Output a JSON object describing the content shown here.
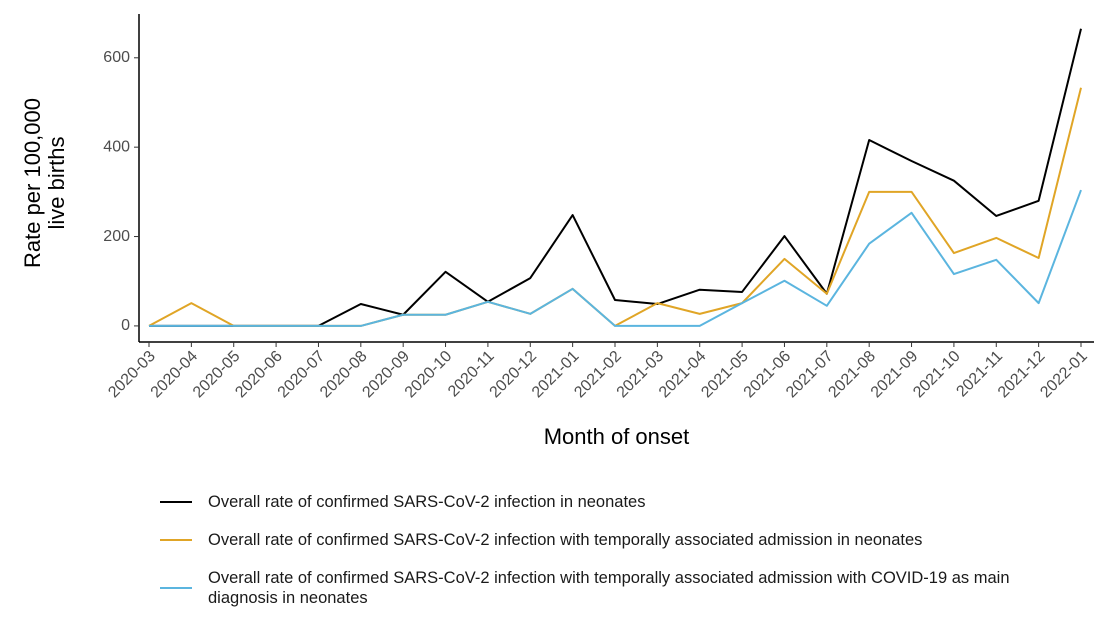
{
  "chart_data": {
    "type": "line",
    "ylabel": [
      "Rate per 100,000",
      "live births"
    ],
    "xlabel": "Month of onset",
    "categories": [
      "2020-03",
      "2020-04",
      "2020-05",
      "2020-06",
      "2020-07",
      "2020-08",
      "2020-09",
      "2020-10",
      "2020-11",
      "2020-12",
      "2021-01",
      "2021-02",
      "2021-03",
      "2021-04",
      "2021-05",
      "2021-06",
      "2021-07",
      "2021-08",
      "2021-09",
      "2021-10",
      "2021-11",
      "2021-12",
      "2022-01"
    ],
    "series": [
      {
        "name": "Overall rate of confirmed SARS-CoV-2 infection in neonates",
        "color": "#000000",
        "values": [
          0,
          0,
          0,
          0,
          0,
          49,
          25,
          121,
          54,
          107,
          248,
          58,
          49,
          81,
          76,
          201,
          72,
          416,
          369,
          325,
          246,
          280,
          665
        ]
      },
      {
        "name": "Overall rate of confirmed SARS-CoV-2 infection with temporally associated admission in neonates",
        "color": "#E0A526",
        "values": [
          0,
          51,
          0,
          0,
          0,
          0,
          25,
          25,
          54,
          27,
          83,
          0,
          51,
          27,
          51,
          150,
          72,
          300,
          300,
          163,
          197,
          152,
          533
        ]
      },
      {
        "name": "Overall rate of confirmed SARS-CoV-2 infection with temporally associated admission with COVID-19 as main diagnosis in neonates",
        "color": "#5BB5DF",
        "values": [
          0,
          0,
          0,
          0,
          0,
          0,
          25,
          25,
          54,
          27,
          83,
          0,
          0,
          0,
          51,
          101,
          45,
          184,
          253,
          116,
          148,
          51,
          304
        ]
      }
    ],
    "ylim": [
      -36,
      698
    ],
    "yticks": [
      0,
      200,
      400,
      600
    ],
    "grid": false
  }
}
